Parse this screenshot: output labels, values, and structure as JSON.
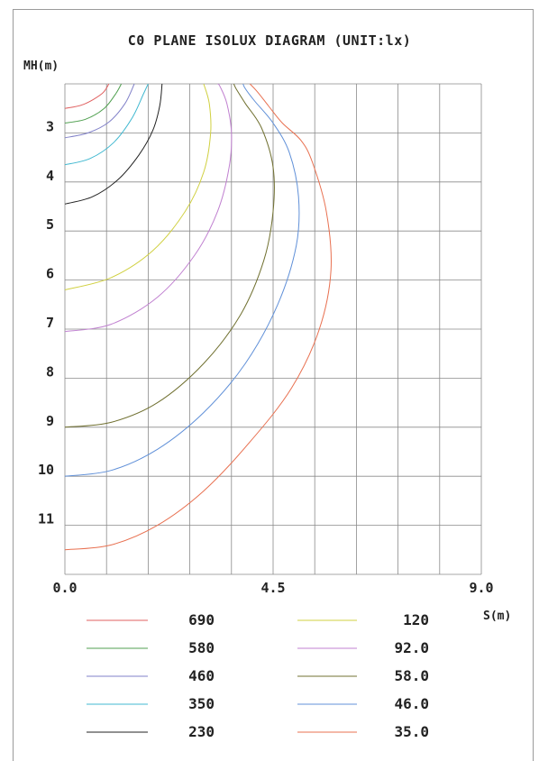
{
  "chart_data": {
    "type": "line",
    "title": "C0 PLANE ISOLUX DIAGRAM (UNIT:lx)",
    "ylabel": "MH(m)",
    "xlabel": "S(m)",
    "xlim": [
      0,
      9
    ],
    "ylim": [
      2,
      12
    ],
    "y_inverted": true,
    "x_tick_labels": [
      {
        "value": 0,
        "label": "0.0"
      },
      {
        "value": 4.5,
        "label": "4.5"
      },
      {
        "value": 9,
        "label": "9.0"
      }
    ],
    "y_tick_labels": [
      {
        "value": 3,
        "label": "3"
      },
      {
        "value": 4,
        "label": "4"
      },
      {
        "value": 5,
        "label": "5"
      },
      {
        "value": 6,
        "label": "6"
      },
      {
        "value": 7,
        "label": "7"
      },
      {
        "value": 8,
        "label": "8"
      },
      {
        "value": 9,
        "label": "9"
      },
      {
        "value": 10,
        "label": "10"
      },
      {
        "value": 11,
        "label": "11"
      }
    ],
    "grid": true,
    "legend_position": "bottom",
    "series": [
      {
        "name": "690",
        "color": "#e06060",
        "points": [
          [
            0,
            2.5
          ],
          [
            0.4,
            2.42
          ],
          [
            0.8,
            2.2
          ],
          [
            0.95,
            2.0
          ]
        ]
      },
      {
        "name": "580",
        "color": "#50a050",
        "points": [
          [
            0,
            2.8
          ],
          [
            0.45,
            2.72
          ],
          [
            0.85,
            2.5
          ],
          [
            1.1,
            2.2
          ],
          [
            1.22,
            2.0
          ]
        ]
      },
      {
        "name": "460",
        "color": "#8080c8",
        "points": [
          [
            0,
            3.1
          ],
          [
            0.5,
            3.0
          ],
          [
            0.95,
            2.78
          ],
          [
            1.3,
            2.4
          ],
          [
            1.5,
            2.0
          ]
        ]
      },
      {
        "name": "350",
        "color": "#40b8d0",
        "points": [
          [
            0,
            3.65
          ],
          [
            0.55,
            3.52
          ],
          [
            1.05,
            3.2
          ],
          [
            1.45,
            2.7
          ],
          [
            1.7,
            2.2
          ],
          [
            1.8,
            2.0
          ]
        ]
      },
      {
        "name": "230",
        "color": "#222222",
        "points": [
          [
            0,
            4.45
          ],
          [
            0.6,
            4.3
          ],
          [
            1.15,
            3.95
          ],
          [
            1.6,
            3.45
          ],
          [
            1.9,
            2.95
          ],
          [
            2.05,
            2.45
          ],
          [
            2.1,
            2.0
          ]
        ]
      },
      {
        "name": "120",
        "color": "#d0d040",
        "points": [
          [
            0,
            6.2
          ],
          [
            1.0,
            5.95
          ],
          [
            1.9,
            5.4
          ],
          [
            2.6,
            4.6
          ],
          [
            3.0,
            3.8
          ],
          [
            3.15,
            3.0
          ],
          [
            3.12,
            2.4
          ],
          [
            3.0,
            2.0
          ]
        ]
      },
      {
        "name": "92.0",
        "color": "#c080d0",
        "points": [
          [
            0,
            7.05
          ],
          [
            1.0,
            6.9
          ],
          [
            2.0,
            6.35
          ],
          [
            2.8,
            5.5
          ],
          [
            3.3,
            4.6
          ],
          [
            3.55,
            3.7
          ],
          [
            3.6,
            3.0
          ],
          [
            3.5,
            2.4
          ],
          [
            3.35,
            2.05
          ],
          [
            3.3,
            2.0
          ]
        ]
      },
      {
        "name": "58.0",
        "color": "#707030",
        "points": [
          [
            0,
            9.0
          ],
          [
            1.0,
            8.9
          ],
          [
            2.0,
            8.5
          ],
          [
            3.0,
            7.7
          ],
          [
            3.8,
            6.7
          ],
          [
            4.3,
            5.6
          ],
          [
            4.5,
            4.6
          ],
          [
            4.5,
            3.7
          ],
          [
            4.25,
            2.9
          ],
          [
            3.9,
            2.4
          ],
          [
            3.7,
            2.1
          ],
          [
            3.65,
            2.0
          ]
        ]
      },
      {
        "name": "46.0",
        "color": "#6090d8",
        "points": [
          [
            0,
            10.0
          ],
          [
            1.0,
            9.88
          ],
          [
            2.0,
            9.45
          ],
          [
            3.0,
            8.7
          ],
          [
            3.9,
            7.7
          ],
          [
            4.6,
            6.5
          ],
          [
            5.0,
            5.3
          ],
          [
            5.05,
            4.3
          ],
          [
            4.85,
            3.4
          ],
          [
            4.5,
            2.8
          ],
          [
            4.1,
            2.35
          ],
          [
            3.9,
            2.1
          ],
          [
            3.85,
            2.0
          ]
        ]
      },
      {
        "name": "35.0",
        "color": "#e87050",
        "points": [
          [
            0,
            11.5
          ],
          [
            1.0,
            11.4
          ],
          [
            2.0,
            11.0
          ],
          [
            3.0,
            10.3
          ],
          [
            4.0,
            9.3
          ],
          [
            4.9,
            8.2
          ],
          [
            5.5,
            7.0
          ],
          [
            5.75,
            5.8
          ],
          [
            5.65,
            4.6
          ],
          [
            5.35,
            3.6
          ],
          [
            5.1,
            3.15
          ],
          [
            4.7,
            2.8
          ],
          [
            4.4,
            2.45
          ],
          [
            4.15,
            2.15
          ],
          [
            4.0,
            2.0
          ]
        ]
      }
    ]
  }
}
